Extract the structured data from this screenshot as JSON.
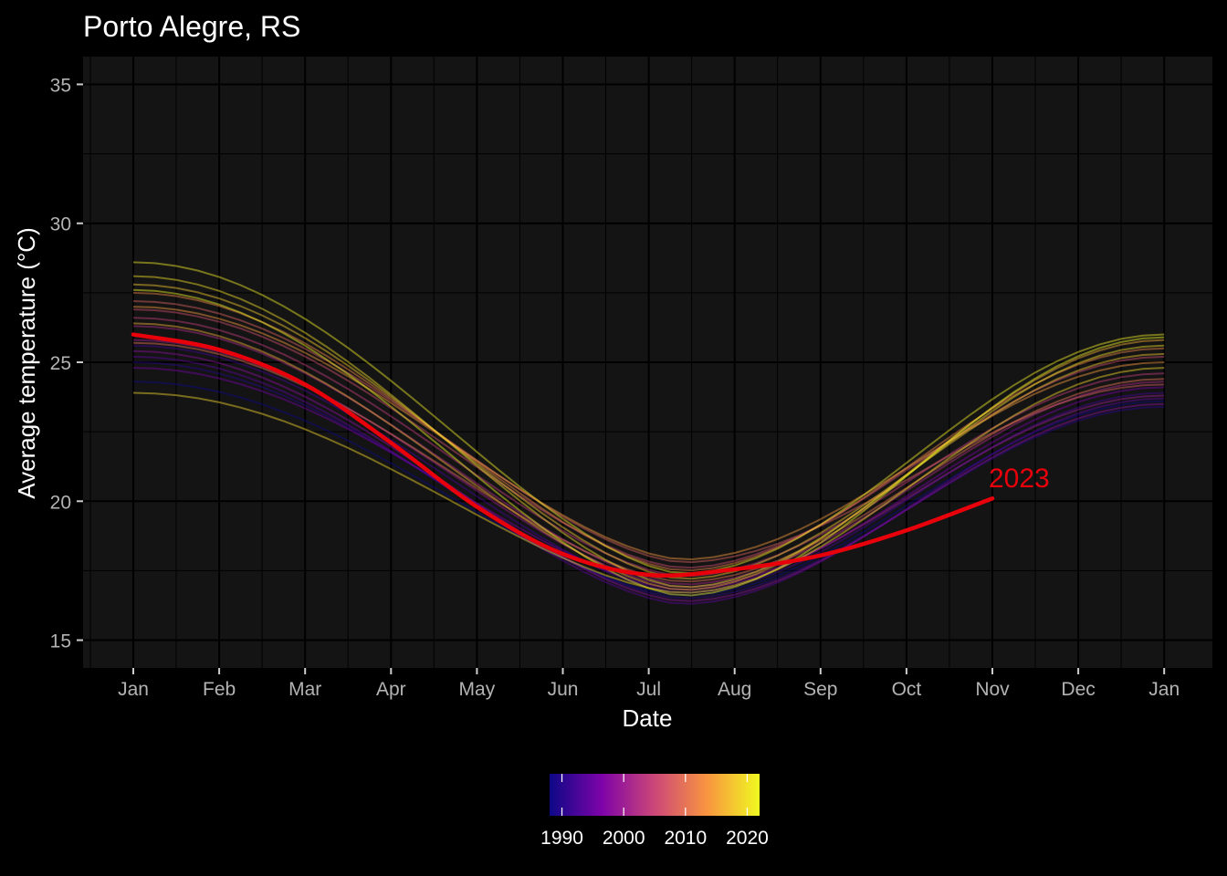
{
  "chart_data": {
    "type": "line",
    "title": "Porto Alegre, RS",
    "xlabel": "Date",
    "ylabel": "Average temperature (°C)",
    "x_ticks": [
      "Jan",
      "Feb",
      "Mar",
      "Apr",
      "May",
      "Jun",
      "Jul",
      "Aug",
      "Sep",
      "Oct",
      "Nov",
      "Dec",
      "Jan"
    ],
    "y_ticks": [
      15,
      20,
      25,
      30,
      35
    ],
    "ylim": [
      14,
      36
    ],
    "grid": true,
    "legend": {
      "type": "colorbar",
      "placement": "bottom",
      "labels": [
        1990,
        2000,
        2010,
        2020
      ],
      "range": [
        1988,
        2022
      ],
      "colors": [
        "#0d0887",
        "#7e03a8",
        "#cc4778",
        "#f89540",
        "#f0f921"
      ]
    },
    "highlight": {
      "name": "2023",
      "color": "#e8000b",
      "points": [
        {
          "date": "Jan 1",
          "value": 26.0
        },
        {
          "date": "Feb 1",
          "value": 25.45
        },
        {
          "date": "Mar 1",
          "value": 24.2
        },
        {
          "date": "Apr 1",
          "value": 22.1
        },
        {
          "date": "May 1",
          "value": 19.8
        },
        {
          "date": "Jun 1",
          "value": 18.1
        },
        {
          "date": "Jul 1",
          "value": 17.35
        },
        {
          "date": "Aug 1",
          "value": 17.55
        },
        {
          "date": "Sep 1",
          "value": 18.05
        },
        {
          "date": "Oct 1",
          "value": 18.95
        },
        {
          "date": "Nov 1",
          "value": 20.1
        }
      ]
    },
    "series_note": "Background series: one smoothed seasonal curve per year, coloured by year",
    "series": [
      {
        "year": 1988,
        "jan": 24.3,
        "min": 16.6,
        "end": 23.6
      },
      {
        "year": 1990,
        "jan": 25.0,
        "min": 16.5,
        "end": 23.4
      },
      {
        "year": 1992,
        "jan": 25.6,
        "min": 16.7,
        "end": 23.9
      },
      {
        "year": 1994,
        "jan": 25.2,
        "min": 16.3,
        "end": 23.7
      },
      {
        "year": 1996,
        "jan": 24.8,
        "min": 16.8,
        "end": 24.1
      },
      {
        "year": 1998,
        "jan": 25.4,
        "min": 16.4,
        "end": 23.5
      },
      {
        "year": 2000,
        "jan": 25.8,
        "min": 16.9,
        "end": 23.8
      },
      {
        "year": 2002,
        "jan": 26.3,
        "min": 17.0,
        "end": 24.3
      },
      {
        "year": 2004,
        "jan": 26.6,
        "min": 17.3,
        "end": 24.6
      },
      {
        "year": 2006,
        "jan": 26.9,
        "min": 17.6,
        "end": 25.2
      },
      {
        "year": 2008,
        "jan": 27.2,
        "min": 17.8,
        "end": 24.2
      },
      {
        "year": 2010,
        "jan": 25.7,
        "min": 17.1,
        "end": 24.4
      },
      {
        "year": 2012,
        "jan": 27.5,
        "min": 17.5,
        "end": 25.5
      },
      {
        "year": 2014,
        "jan": 27.0,
        "min": 17.9,
        "end": 25.0
      },
      {
        "year": 2016,
        "jan": 26.4,
        "min": 16.8,
        "end": 25.8
      },
      {
        "year": 2018,
        "jan": 27.8,
        "min": 17.2,
        "end": 25.3
      },
      {
        "year": 2019,
        "jan": 23.9,
        "min": 16.7,
        "end": 24.8
      },
      {
        "year": 2020,
        "jan": 28.1,
        "min": 16.9,
        "end": 25.6
      },
      {
        "year": 2021,
        "jan": 28.6,
        "min": 17.4,
        "end": 26.0
      },
      {
        "year": 2022,
        "jan": 27.6,
        "min": 16.6,
        "end": 25.9
      }
    ]
  }
}
